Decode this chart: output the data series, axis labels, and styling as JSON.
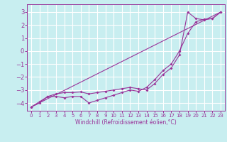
{
  "xlabel": "Windchill (Refroidissement éolien,°C)",
  "background_color": "#c8eef0",
  "grid_color": "#ffffff",
  "line_color": "#993399",
  "xlim": [
    -0.5,
    23.5
  ],
  "ylim": [
    -4.6,
    3.6
  ],
  "yticks": [
    -4,
    -3,
    -2,
    -1,
    0,
    1,
    2,
    3
  ],
  "xticks": [
    0,
    1,
    2,
    3,
    4,
    5,
    6,
    7,
    8,
    9,
    10,
    11,
    12,
    13,
    14,
    15,
    16,
    17,
    18,
    19,
    20,
    21,
    22,
    23
  ],
  "line1_x": [
    0,
    1,
    2,
    3,
    4,
    5,
    6,
    7,
    8,
    9,
    10,
    11,
    12,
    13,
    14,
    15,
    16,
    17,
    18,
    19,
    20,
    21,
    22,
    23
  ],
  "line1_y": [
    -4.3,
    -3.9,
    -3.5,
    -3.3,
    -3.2,
    -3.2,
    -3.15,
    -3.3,
    -3.2,
    -3.1,
    -3.0,
    -2.9,
    -2.8,
    -2.9,
    -3.0,
    -2.5,
    -1.8,
    -1.3,
    -0.3,
    3.0,
    2.5,
    2.4,
    2.5,
    3.0
  ],
  "line2_x": [
    0,
    1,
    2,
    3,
    4,
    5,
    6,
    7,
    8,
    9,
    10,
    11,
    12,
    13,
    14,
    15,
    16,
    17,
    18,
    19,
    20,
    21,
    22,
    23
  ],
  "line2_y": [
    -4.3,
    -4.0,
    -3.5,
    -3.5,
    -3.6,
    -3.5,
    -3.5,
    -4.0,
    -3.8,
    -3.6,
    -3.4,
    -3.2,
    -3.0,
    -3.1,
    -2.8,
    -2.2,
    -1.5,
    -1.0,
    0.0,
    1.35,
    2.25,
    2.45,
    2.5,
    3.0
  ],
  "line3_x": [
    0,
    23
  ],
  "line3_y": [
    -4.3,
    3.0
  ]
}
